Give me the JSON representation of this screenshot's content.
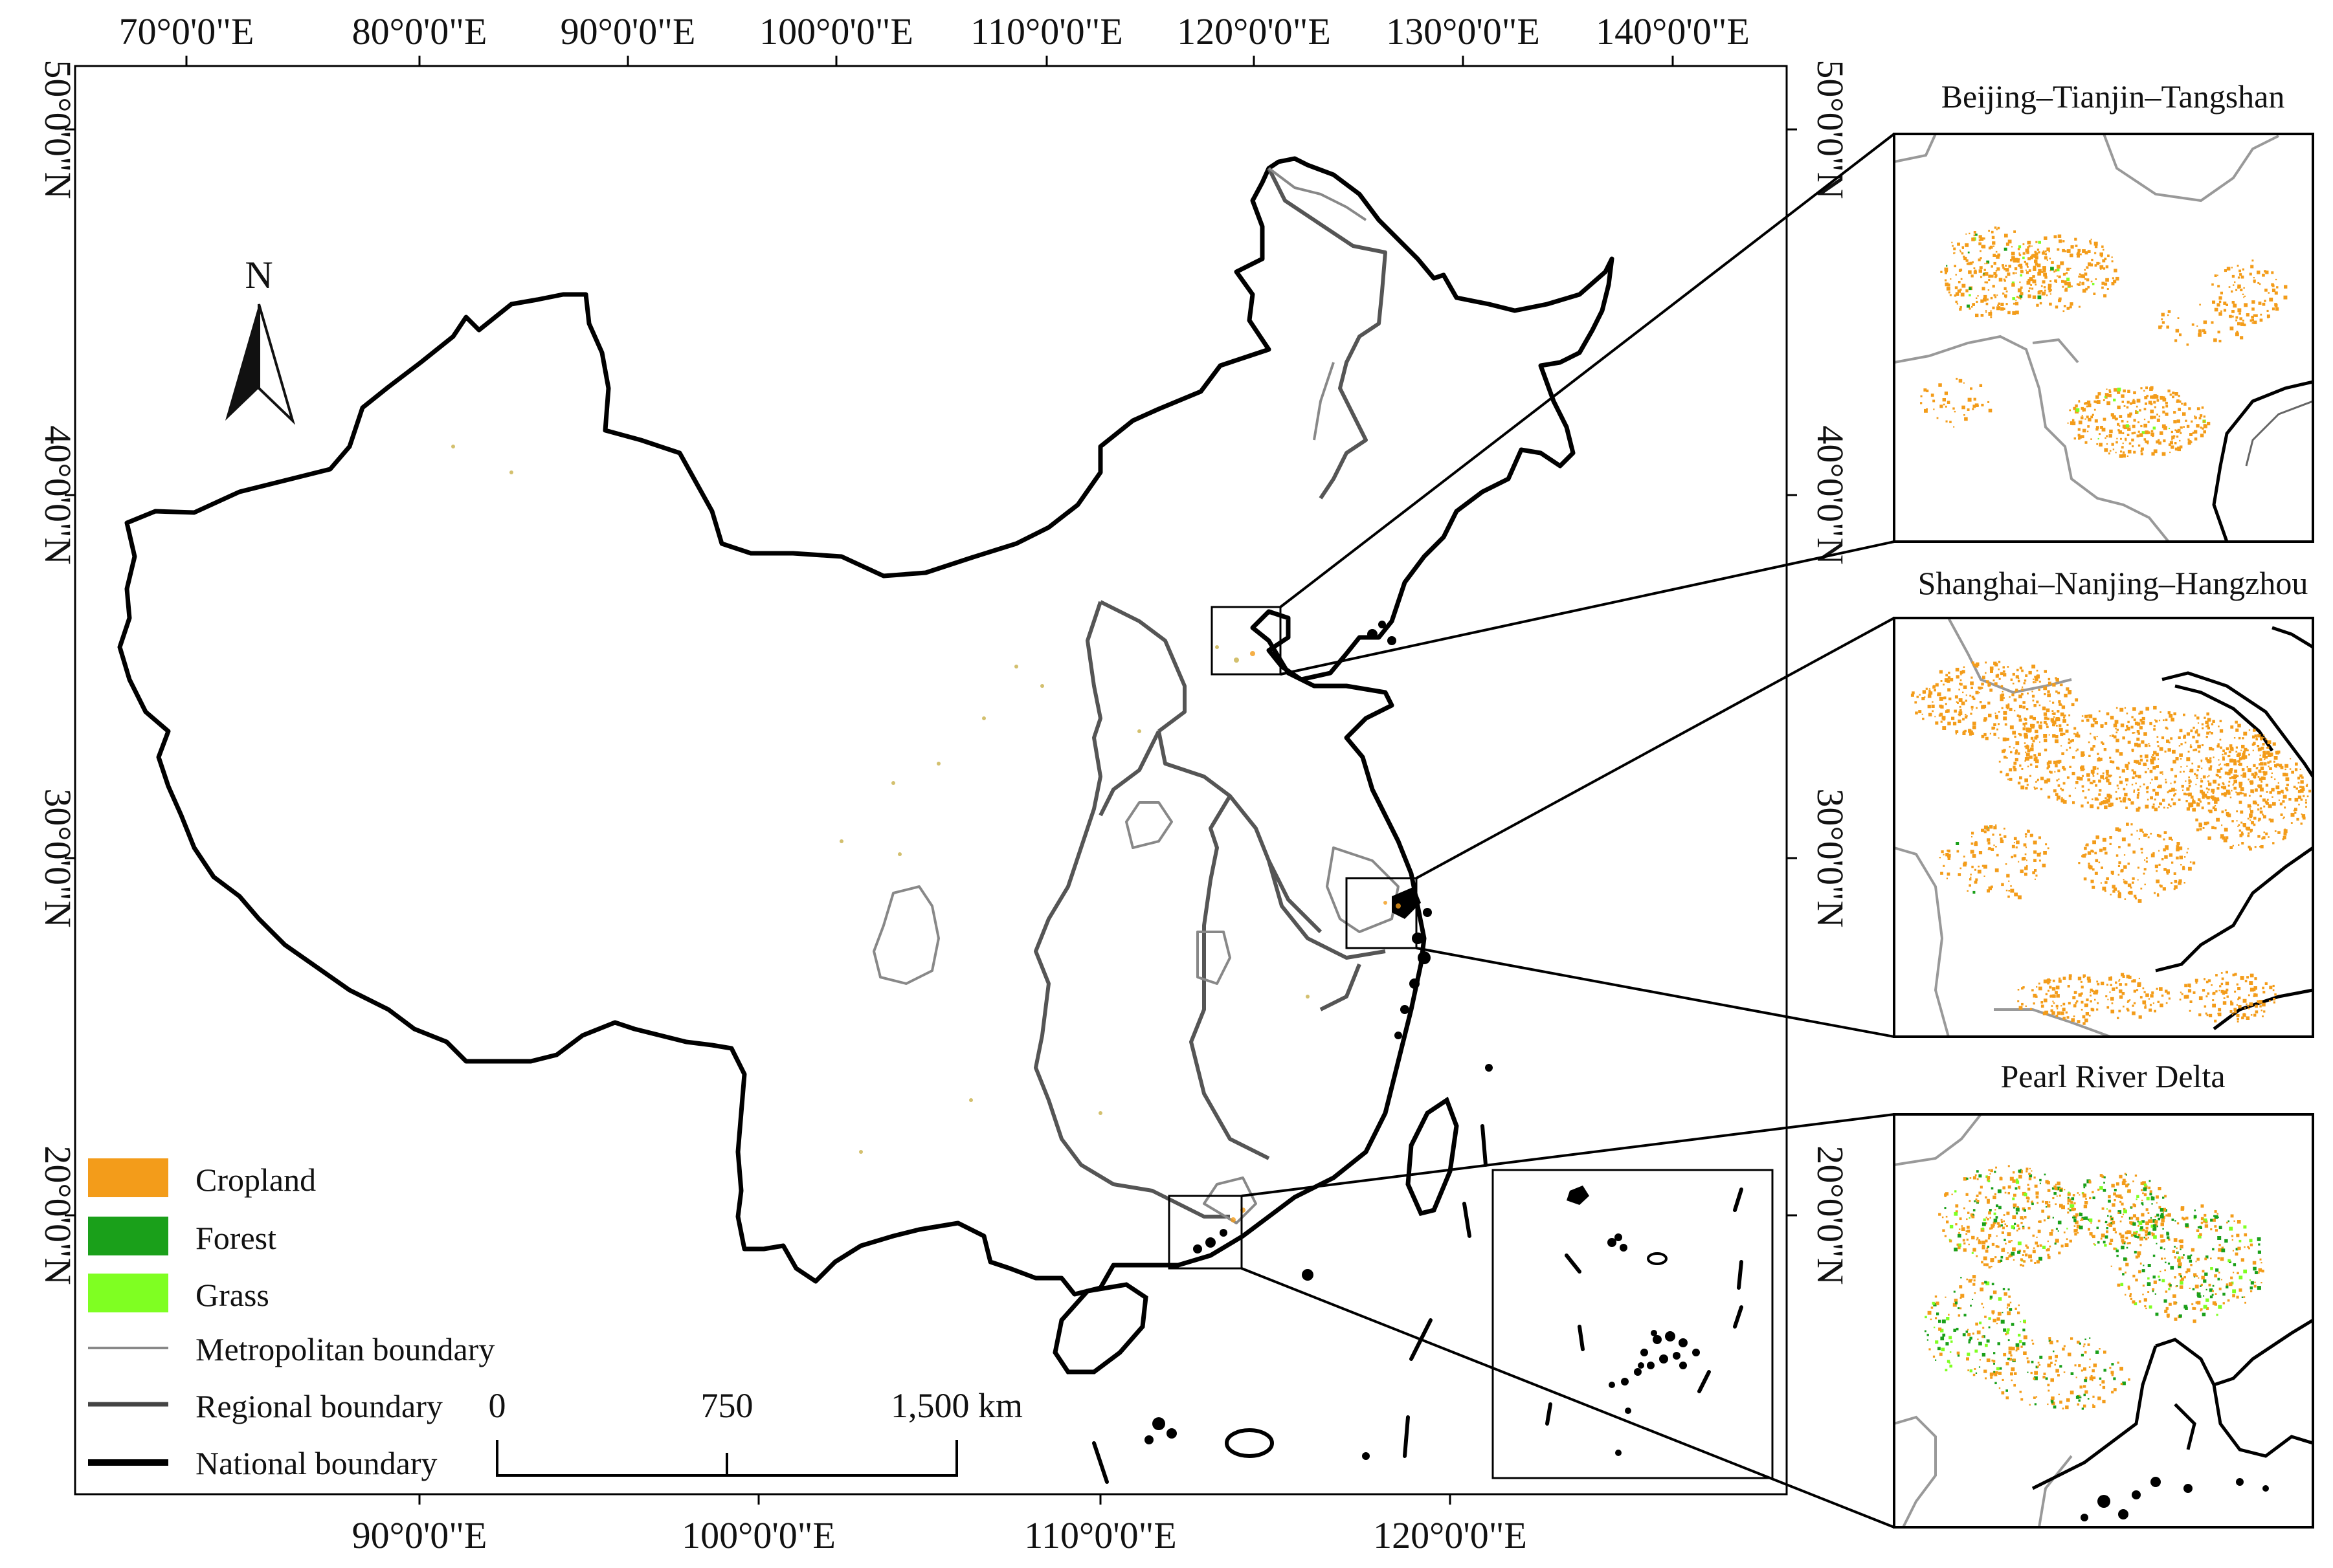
{
  "map": {
    "top_axis_labels": [
      "70°0'0\"E",
      "80°0'0\"E",
      "90°0'0\"E",
      "100°0'0\"E",
      "110°0'0\"E",
      "120°0'0\"E",
      "130°0'0\"E",
      "140°0'0\"E"
    ],
    "bottom_axis_labels": [
      "90°0'0\"E",
      "100°0'0\"E",
      "110°0'0\"E",
      "120°0'0\"E"
    ],
    "left_axis_labels": [
      "50°0'0\"N",
      "40°0'0\"N",
      "30°0'0\"N",
      "20°0'0\"N"
    ],
    "right_axis_labels": [
      "50°0'0\"N",
      "40°0'0\"N",
      "30°0'0\"N",
      "20°0'0\"N"
    ],
    "north_arrow": "N",
    "north_arrow_icon": "north-arrow-icon"
  },
  "legend": {
    "items": [
      {
        "label": "Cropland",
        "type": "fill",
        "color": "#f39c1a"
      },
      {
        "label": "Forest",
        "type": "fill",
        "color": "#1aa01a"
      },
      {
        "label": "Grass",
        "type": "fill",
        "color": "#7fff22"
      },
      {
        "label": "Metropolitan boundary",
        "type": "line",
        "color": "#888888"
      },
      {
        "label": "Regional boundary",
        "type": "line",
        "color": "#444444"
      },
      {
        "label": "National boundary",
        "type": "line",
        "color": "#000000"
      }
    ]
  },
  "scale_bar": {
    "labels": [
      "0",
      "750",
      "1,500 km"
    ]
  },
  "insets": [
    {
      "title": "Beijing–Tianjin–Tangshan"
    },
    {
      "title": "Shanghai–Nanjing–Hangzhou"
    },
    {
      "title": "Pearl River Delta"
    }
  ],
  "colors": {
    "cropland": "#f39c1a",
    "forest": "#1aa01a",
    "grass": "#7fff22"
  }
}
